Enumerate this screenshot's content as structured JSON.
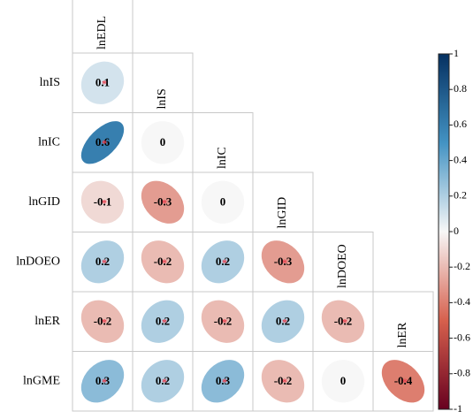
{
  "chart_data": {
    "type": "heatmap",
    "subtype": "correlation-ellipse-lower-triangle",
    "variables": [
      "lnEDL",
      "lnIS",
      "lnIC",
      "lnGID",
      "lnDOEO",
      "lnER",
      "lnGME"
    ],
    "row_labels": [
      "lnIS",
      "lnIC",
      "lnGID",
      "lnDOEO",
      "lnER",
      "lnGME"
    ],
    "column_labels": [
      "lnEDL",
      "lnIS",
      "lnIC",
      "lnGID",
      "lnDOEO",
      "lnER"
    ],
    "cells": [
      {
        "row": "lnIS",
        "col": "lnEDL",
        "value": 0.1,
        "label": "0.1",
        "significance_marker": "*"
      },
      {
        "row": "lnIC",
        "col": "lnEDL",
        "value": 0.6,
        "label": "0.6",
        "significance_marker": "*"
      },
      {
        "row": "lnIC",
        "col": "lnIS",
        "value": 0.0,
        "label": "0",
        "significance_marker": ""
      },
      {
        "row": "lnGID",
        "col": "lnEDL",
        "value": -0.1,
        "label": "-0.1",
        "significance_marker": "*"
      },
      {
        "row": "lnGID",
        "col": "lnIS",
        "value": -0.3,
        "label": "-0.3",
        "significance_marker": "*"
      },
      {
        "row": "lnGID",
        "col": "lnIC",
        "value": 0.0,
        "label": "0",
        "significance_marker": ""
      },
      {
        "row": "lnDOEO",
        "col": "lnEDL",
        "value": 0.2,
        "label": "0.2",
        "significance_marker": "*"
      },
      {
        "row": "lnDOEO",
        "col": "lnIS",
        "value": -0.2,
        "label": "-0.2",
        "significance_marker": "*"
      },
      {
        "row": "lnDOEO",
        "col": "lnIC",
        "value": 0.2,
        "label": "0.2",
        "significance_marker": "*"
      },
      {
        "row": "lnDOEO",
        "col": "lnGID",
        "value": -0.3,
        "label": "-0.3",
        "significance_marker": "*"
      },
      {
        "row": "lnER",
        "col": "lnEDL",
        "value": -0.2,
        "label": "-0.2",
        "significance_marker": "*"
      },
      {
        "row": "lnER",
        "col": "lnIS",
        "value": 0.2,
        "label": "0.2",
        "significance_marker": "*"
      },
      {
        "row": "lnER",
        "col": "lnIC",
        "value": -0.2,
        "label": "-0.2",
        "significance_marker": "*"
      },
      {
        "row": "lnER",
        "col": "lnGID",
        "value": 0.2,
        "label": "0.2",
        "significance_marker": "*"
      },
      {
        "row": "lnER",
        "col": "lnDOEO",
        "value": -0.2,
        "label": "-0.2",
        "significance_marker": "*"
      },
      {
        "row": "lnGME",
        "col": "lnEDL",
        "value": 0.3,
        "label": "0.3",
        "significance_marker": "*"
      },
      {
        "row": "lnGME",
        "col": "lnIS",
        "value": 0.2,
        "label": "0.2",
        "significance_marker": "*"
      },
      {
        "row": "lnGME",
        "col": "lnIC",
        "value": 0.3,
        "label": "0.3",
        "significance_marker": "*"
      },
      {
        "row": "lnGME",
        "col": "lnGID",
        "value": -0.2,
        "label": "-0.2",
        "significance_marker": "*"
      },
      {
        "row": "lnGME",
        "col": "lnDOEO",
        "value": 0.0,
        "label": "0",
        "significance_marker": ""
      },
      {
        "row": "lnGME",
        "col": "lnER",
        "value": -0.4,
        "label": "-0.4",
        "significance_marker": "*"
      }
    ],
    "colorbar": {
      "range": [
        -1,
        1
      ],
      "ticks": [
        1,
        0.8,
        0.6,
        0.4,
        0.2,
        0,
        -0.2,
        -0.4,
        -0.6,
        -0.8,
        -1
      ],
      "tick_labels": [
        "1",
        "0.8",
        "0.6",
        "0.4",
        "0.2",
        "0",
        "-0.2",
        "-0.4",
        "-0.6",
        "-0.8",
        "-1"
      ],
      "placement": "right",
      "colors": {
        "negative_end": "#67001f",
        "negative_mid": "#d6604d",
        "neutral": "#f7f7f7",
        "positive_mid": "#4393c3",
        "positive_end": "#053061"
      }
    },
    "colors": {
      "cell_text": "#000000",
      "significance_marker": "#e8414f",
      "grid_border": "#c8c8c8"
    },
    "title": "",
    "xlabel": "",
    "ylabel": "",
    "grid": true
  }
}
